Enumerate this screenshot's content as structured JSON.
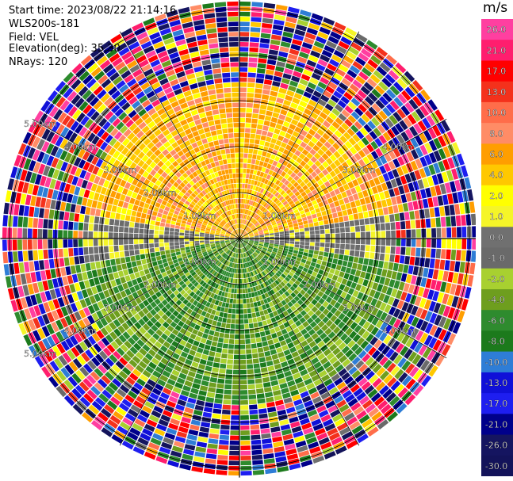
{
  "header": {
    "start_time": "Start time: 2023/08/22 21:14:16",
    "instrument": "WLS200s-181",
    "field": "Field: VEL",
    "elevation": "Elevation(deg): 35.30",
    "nrays": "NRays: 120"
  },
  "chart_data": {
    "type": "heatmap",
    "projection": "polar PPI",
    "field": "VEL",
    "units": "m/s",
    "n_rays": 120,
    "elevation_deg": 35.3,
    "range_rings_km": [
      1.0,
      2.0,
      3.0,
      4.0,
      5.0
    ],
    "max_range_km": 5.2,
    "range_ring_labels": [
      {
        "text": "1.00km",
        "ring_km": 1.0,
        "azimuth_deg": 300
      },
      {
        "text": "1.00km",
        "ring_km": 1.0,
        "azimuth_deg": 60
      },
      {
        "text": "1.00km",
        "ring_km": 1.0,
        "azimuth_deg": 240
      },
      {
        "text": "1.00km",
        "ring_km": 1.0,
        "azimuth_deg": 120
      },
      {
        "text": "2.00km",
        "ring_km": 2.0,
        "azimuth_deg": 300
      },
      {
        "text": "2.00km",
        "ring_km": 2.0,
        "azimuth_deg": 240
      },
      {
        "text": "2.00km",
        "ring_km": 2.0,
        "azimuth_deg": 120
      },
      {
        "text": "3.00km",
        "ring_km": 3.0,
        "azimuth_deg": 300
      },
      {
        "text": "3.00km",
        "ring_km": 3.0,
        "azimuth_deg": 60
      },
      {
        "text": "3.00km",
        "ring_km": 3.0,
        "azimuth_deg": 240
      },
      {
        "text": "3.00km",
        "ring_km": 3.0,
        "azimuth_deg": 120
      },
      {
        "text": "4.00km",
        "ring_km": 4.0,
        "azimuth_deg": 300
      },
      {
        "text": "4.00km",
        "ring_km": 4.0,
        "azimuth_deg": 60
      },
      {
        "text": "4.00km",
        "ring_km": 4.0,
        "azimuth_deg": 240
      },
      {
        "text": "4.00km",
        "ring_km": 4.0,
        "azimuth_deg": 120
      },
      {
        "text": "5.00km",
        "ring_km": 5.0,
        "azimuth_deg": 300
      },
      {
        "text": "5.00km",
        "ring_km": 5.0,
        "azimuth_deg": 240
      }
    ],
    "colorbar": {
      "label": "m/s",
      "ticks": [
        "26.0",
        "21.0",
        "17.0",
        "13.0",
        "10.0",
        "8.0",
        "6.0",
        "4.0",
        "2.0",
        "1.0",
        "0.0",
        "-1.0",
        "-2.0",
        "-4.0",
        "-6.0",
        "-8.0",
        "-10.0",
        "-13.0",
        "-17.0",
        "-21.0",
        "-26.0",
        "-30.0"
      ],
      "colors": [
        "#ff3fa0",
        "#ff1e6e",
        "#ff0000",
        "#f4311c",
        "#ff6d4a",
        "#ff8c66",
        "#ff9e00",
        "#ffc800",
        "#ffff00",
        "#f5f528",
        "#707070",
        "#6a6a6a",
        "#a8d030",
        "#6e9e1e",
        "#2e8b2e",
        "#1c7a1c",
        "#2e7dd6",
        "#1010d8",
        "#1e1ef0",
        "#00008b",
        "#151560",
        "#13135a"
      ]
    },
    "regions": [
      {
        "name": "inner-receding",
        "range_km": [
          0.0,
          3.4
        ],
        "azimuth_deg": [
          280,
          80
        ],
        "velocity_ms": [
          2.0,
          8.0
        ]
      },
      {
        "name": "inner-near-zero",
        "range_km": [
          0.0,
          3.4
        ],
        "azimuth_deg": [
          80,
          100
        ],
        "velocity_ms": [
          -1.0,
          1.0
        ]
      },
      {
        "name": "inner-near-zero-west",
        "range_km": [
          0.0,
          3.4
        ],
        "azimuth_deg": [
          260,
          280
        ],
        "velocity_ms": [
          -1.0,
          1.0
        ]
      },
      {
        "name": "inner-approaching",
        "range_km": [
          0.0,
          3.6
        ],
        "azimuth_deg": [
          100,
          260
        ],
        "velocity_ms": [
          -8.0,
          -2.0
        ]
      },
      {
        "name": "outer-noise",
        "range_km": [
          3.4,
          5.2
        ],
        "azimuth_deg": [
          0,
          360
        ],
        "velocity_ms": [
          -30.0,
          26.0
        ]
      }
    ]
  }
}
